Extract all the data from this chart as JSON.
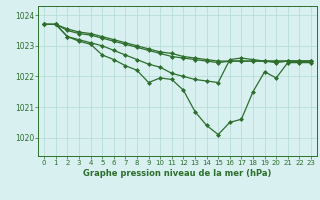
{
  "title": "Graphe pression niveau de la mer (hPa)",
  "bg_color": "#d8f0f0",
  "grid_color": "#b8ddd8",
  "line_color": "#2d6e2d",
  "xlim": [
    -0.5,
    23.5
  ],
  "ylim": [
    1019.4,
    1024.3
  ],
  "yticks": [
    1020,
    1021,
    1022,
    1023,
    1024
  ],
  "xticks": [
    0,
    1,
    2,
    3,
    4,
    5,
    6,
    7,
    8,
    9,
    10,
    11,
    12,
    13,
    14,
    15,
    16,
    17,
    18,
    19,
    20,
    21,
    22,
    23
  ],
  "series": [
    {
      "x": [
        0,
        1,
        2,
        3,
        4,
        5,
        6,
        7,
        8,
        9,
        10,
        11,
        12,
        13,
        14,
        15,
        16,
        17,
        18,
        19,
        20,
        21,
        22,
        23
      ],
      "y": [
        1023.7,
        1023.7,
        1023.3,
        1023.15,
        1023.05,
        1022.7,
        1022.55,
        1022.35,
        1022.2,
        1021.8,
        1021.95,
        1021.9,
        1021.55,
        1020.85,
        1020.4,
        1020.1,
        1020.5,
        1020.6,
        1021.5,
        1022.15,
        1021.95,
        1022.45,
        1022.45,
        1022.45
      ]
    },
    {
      "x": [
        0,
        1,
        2,
        3,
        4,
        5,
        6,
        7,
        8,
        9,
        10,
        11,
        12,
        13,
        14,
        15,
        16,
        17,
        18,
        19,
        20,
        21,
        22,
        23
      ],
      "y": [
        1023.7,
        1023.7,
        1023.55,
        1023.45,
        1023.4,
        1023.3,
        1023.2,
        1023.1,
        1023.0,
        1022.9,
        1022.8,
        1022.75,
        1022.65,
        1022.6,
        1022.55,
        1022.5,
        1022.5,
        1022.5,
        1022.5,
        1022.5,
        1022.5,
        1022.5,
        1022.5,
        1022.5
      ]
    },
    {
      "x": [
        0,
        1,
        2,
        3,
        4,
        5,
        6,
        7,
        8,
        9,
        10,
        11,
        12,
        13,
        14,
        15,
        16,
        17,
        18,
        19,
        20,
        21,
        22,
        23
      ],
      "y": [
        1023.7,
        1023.7,
        1023.5,
        1023.4,
        1023.35,
        1023.25,
        1023.15,
        1023.05,
        1022.95,
        1022.85,
        1022.75,
        1022.65,
        1022.6,
        1022.55,
        1022.5,
        1022.45,
        1022.5,
        1022.5,
        1022.5,
        1022.5,
        1022.5,
        1022.5,
        1022.5,
        1022.5
      ]
    },
    {
      "x": [
        0,
        1,
        2,
        3,
        4,
        5,
        6,
        7,
        8,
        9,
        10,
        11,
        12,
        13,
        14,
        15,
        16,
        17,
        18,
        19,
        20,
        21,
        22,
        23
      ],
      "y": [
        1023.7,
        1023.7,
        1023.3,
        1023.2,
        1023.1,
        1023.0,
        1022.85,
        1022.7,
        1022.55,
        1022.4,
        1022.3,
        1022.1,
        1022.0,
        1021.9,
        1021.85,
        1021.8,
        1022.55,
        1022.6,
        1022.55,
        1022.5,
        1022.45,
        1022.5,
        1022.5,
        1022.5
      ]
    }
  ],
  "marker": "D",
  "markersize": 2.0,
  "linewidth": 0.9
}
